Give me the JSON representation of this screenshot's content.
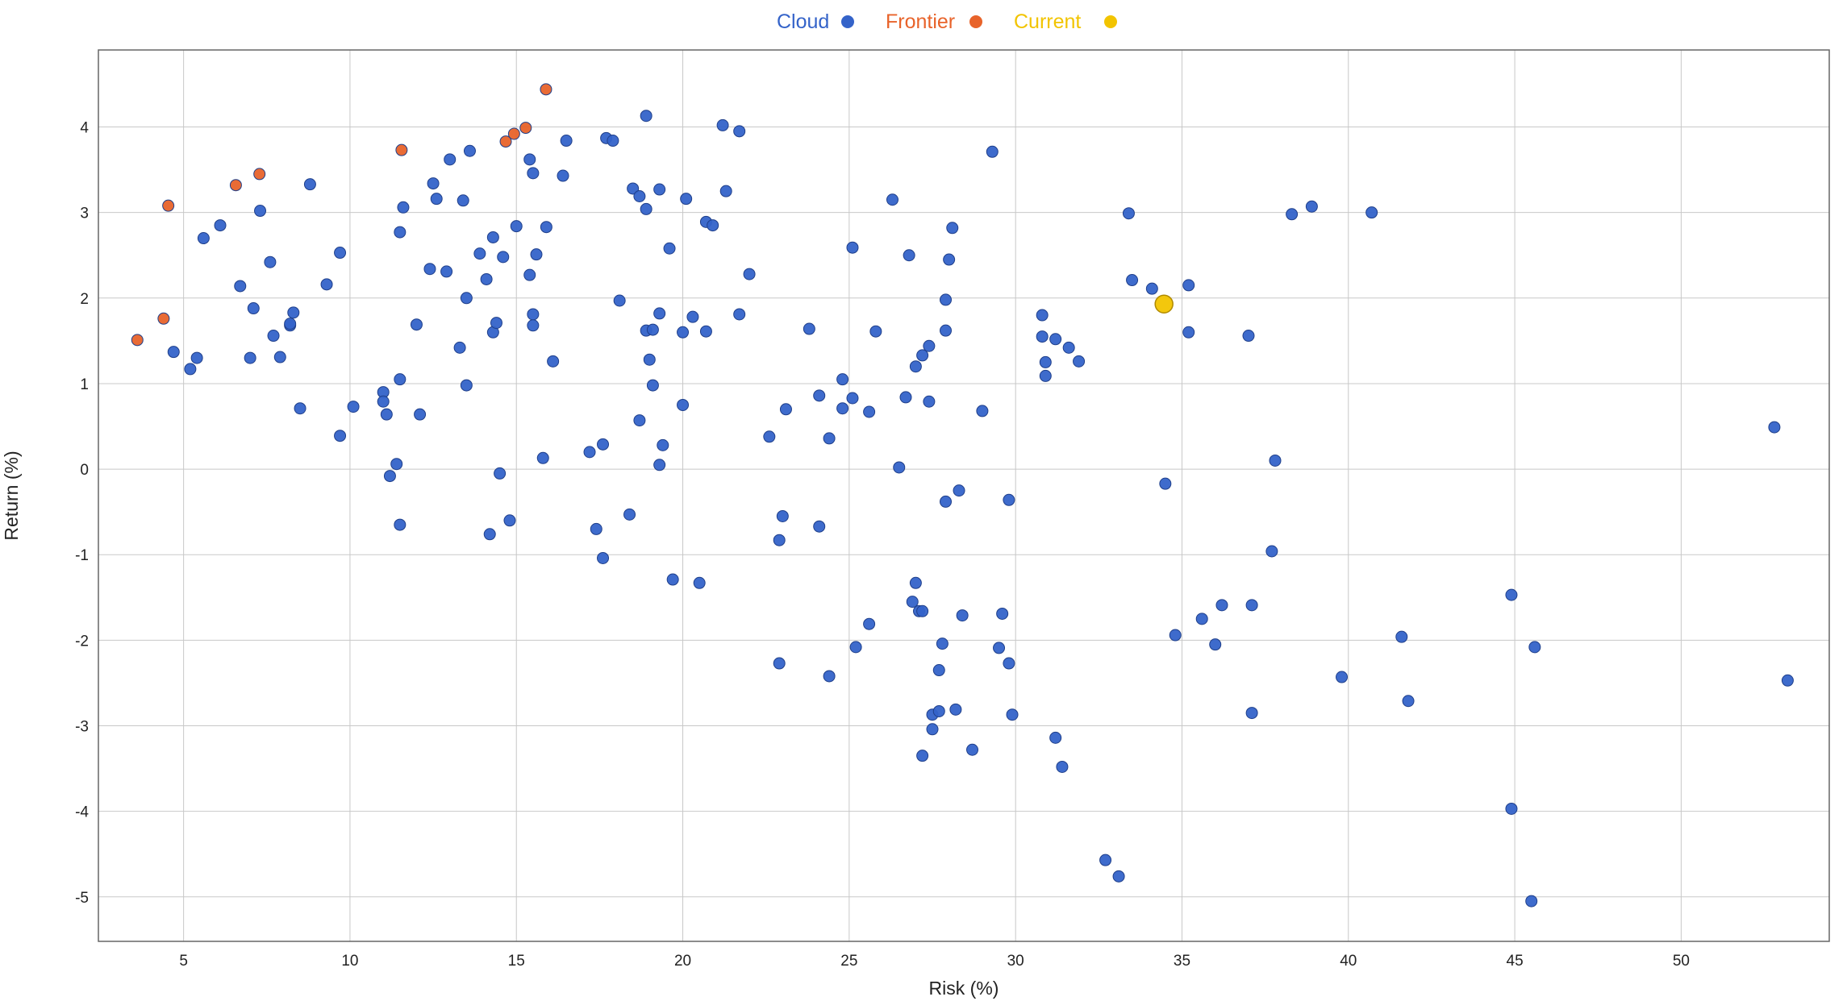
{
  "chart_data": {
    "type": "scatter",
    "title": "",
    "xlabel": "Risk (%)",
    "ylabel": "Return (%)",
    "xlim": [
      2.44,
      54.45
    ],
    "ylim": [
      -5.52,
      4.9
    ],
    "xticks": [
      5,
      10,
      15,
      20,
      25,
      30,
      35,
      40,
      45,
      50
    ],
    "yticks": [
      4,
      3,
      2,
      1,
      0,
      -1,
      -2,
      -3,
      -4,
      -5
    ],
    "grid": true,
    "legend_position": "top-center",
    "series": [
      {
        "name": "Cloud",
        "color": "#3463c9",
        "points": [
          [
            4.7,
            1.37
          ],
          [
            5.2,
            1.17
          ],
          [
            5.4,
            1.3
          ],
          [
            5.6,
            2.7
          ],
          [
            6.1,
            2.85
          ],
          [
            6.7,
            2.14
          ],
          [
            7.0,
            1.3
          ],
          [
            7.1,
            1.88
          ],
          [
            7.3,
            3.02
          ],
          [
            7.6,
            2.42
          ],
          [
            7.7,
            1.56
          ],
          [
            7.9,
            1.31
          ],
          [
            8.2,
            1.68
          ],
          [
            8.2,
            1.7
          ],
          [
            8.3,
            1.83
          ],
          [
            8.5,
            0.71
          ],
          [
            8.8,
            3.33
          ],
          [
            9.3,
            2.16
          ],
          [
            9.7,
            0.39
          ],
          [
            9.7,
            2.53
          ],
          [
            10.1,
            0.73
          ],
          [
            11.0,
            0.9
          ],
          [
            11.0,
            0.79
          ],
          [
            11.1,
            0.64
          ],
          [
            11.2,
            -0.08
          ],
          [
            11.4,
            0.06
          ],
          [
            11.5,
            1.05
          ],
          [
            11.5,
            2.77
          ],
          [
            11.5,
            -0.65
          ],
          [
            11.6,
            3.06
          ],
          [
            12.0,
            1.69
          ],
          [
            12.1,
            0.64
          ],
          [
            12.4,
            2.34
          ],
          [
            12.5,
            3.34
          ],
          [
            12.6,
            3.16
          ],
          [
            12.9,
            2.31
          ],
          [
            13.0,
            3.62
          ],
          [
            13.3,
            1.42
          ],
          [
            13.4,
            3.14
          ],
          [
            13.5,
            0.98
          ],
          [
            13.5,
            2.0
          ],
          [
            13.6,
            3.72
          ],
          [
            13.9,
            2.52
          ],
          [
            14.1,
            2.22
          ],
          [
            14.2,
            -0.76
          ],
          [
            14.3,
            2.71
          ],
          [
            14.3,
            1.6
          ],
          [
            14.4,
            1.71
          ],
          [
            14.5,
            -0.05
          ],
          [
            14.6,
            2.48
          ],
          [
            14.8,
            -0.6
          ],
          [
            15.0,
            2.84
          ],
          [
            15.4,
            2.27
          ],
          [
            15.4,
            3.62
          ],
          [
            15.5,
            3.46
          ],
          [
            15.5,
            1.81
          ],
          [
            15.5,
            1.68
          ],
          [
            15.6,
            2.51
          ],
          [
            15.8,
            0.13
          ],
          [
            15.9,
            2.83
          ],
          [
            16.1,
            1.26
          ],
          [
            16.4,
            3.43
          ],
          [
            16.5,
            3.84
          ],
          [
            17.2,
            0.2
          ],
          [
            17.4,
            -0.7
          ],
          [
            17.6,
            0.29
          ],
          [
            17.6,
            -1.04
          ],
          [
            17.7,
            3.87
          ],
          [
            17.9,
            3.84
          ],
          [
            18.1,
            1.97
          ],
          [
            18.4,
            -0.53
          ],
          [
            18.5,
            3.28
          ],
          [
            18.7,
            0.57
          ],
          [
            18.7,
            3.19
          ],
          [
            18.9,
            4.13
          ],
          [
            18.9,
            3.04
          ],
          [
            18.9,
            1.62
          ],
          [
            19.1,
            1.63
          ],
          [
            19.0,
            1.28
          ],
          [
            19.1,
            0.98
          ],
          [
            19.3,
            3.27
          ],
          [
            19.3,
            1.82
          ],
          [
            19.3,
            0.05
          ],
          [
            19.4,
            0.28
          ],
          [
            19.6,
            2.58
          ],
          [
            19.7,
            -1.29
          ],
          [
            20.0,
            1.6
          ],
          [
            20.0,
            0.75
          ],
          [
            20.1,
            3.16
          ],
          [
            20.3,
            1.78
          ],
          [
            20.5,
            -1.33
          ],
          [
            20.7,
            2.89
          ],
          [
            20.7,
            1.61
          ],
          [
            20.9,
            2.85
          ],
          [
            21.2,
            4.02
          ],
          [
            21.3,
            3.25
          ],
          [
            21.7,
            3.95
          ],
          [
            21.7,
            1.81
          ],
          [
            22.0,
            2.28
          ],
          [
            22.6,
            0.38
          ],
          [
            22.9,
            -2.27
          ],
          [
            22.9,
            -0.83
          ],
          [
            23.0,
            -0.55
          ],
          [
            23.1,
            0.7
          ],
          [
            23.8,
            1.64
          ],
          [
            24.1,
            0.86
          ],
          [
            24.1,
            -0.67
          ],
          [
            24.4,
            0.36
          ],
          [
            24.4,
            -2.42
          ],
          [
            24.8,
            1.05
          ],
          [
            24.8,
            0.71
          ],
          [
            25.1,
            2.59
          ],
          [
            25.1,
            0.83
          ],
          [
            25.2,
            -2.08
          ],
          [
            25.6,
            -1.81
          ],
          [
            25.6,
            0.67
          ],
          [
            25.8,
            1.61
          ],
          [
            26.3,
            3.15
          ],
          [
            26.5,
            0.02
          ],
          [
            26.7,
            0.84
          ],
          [
            26.8,
            2.5
          ],
          [
            26.9,
            -1.55
          ],
          [
            27.0,
            1.2
          ],
          [
            27.0,
            -1.33
          ],
          [
            27.1,
            -1.66
          ],
          [
            27.2,
            -1.66
          ],
          [
            27.2,
            -3.35
          ],
          [
            27.2,
            1.33
          ],
          [
            27.4,
            1.44
          ],
          [
            27.4,
            0.79
          ],
          [
            27.5,
            -2.87
          ],
          [
            27.5,
            -3.04
          ],
          [
            27.7,
            -2.83
          ],
          [
            27.7,
            -2.35
          ],
          [
            27.8,
            -2.04
          ],
          [
            27.9,
            1.98
          ],
          [
            27.9,
            1.62
          ],
          [
            27.9,
            -0.38
          ],
          [
            28.0,
            2.45
          ],
          [
            28.1,
            2.82
          ],
          [
            28.2,
            -2.81
          ],
          [
            28.3,
            -0.25
          ],
          [
            28.4,
            -1.71
          ],
          [
            28.7,
            -3.28
          ],
          [
            29.0,
            0.68
          ],
          [
            29.3,
            3.71
          ],
          [
            29.5,
            -2.09
          ],
          [
            29.6,
            -1.69
          ],
          [
            29.8,
            -0.36
          ],
          [
            29.8,
            -2.27
          ],
          [
            29.9,
            -2.87
          ],
          [
            30.8,
            1.55
          ],
          [
            30.8,
            1.8
          ],
          [
            30.9,
            1.25
          ],
          [
            30.9,
            1.09
          ],
          [
            31.2,
            1.52
          ],
          [
            31.2,
            -3.14
          ],
          [
            31.4,
            -3.48
          ],
          [
            31.6,
            1.42
          ],
          [
            31.9,
            1.26
          ],
          [
            32.7,
            -4.57
          ],
          [
            33.1,
            -4.76
          ],
          [
            33.4,
            2.99
          ],
          [
            33.5,
            2.21
          ],
          [
            34.1,
            2.11
          ],
          [
            34.5,
            -0.17
          ],
          [
            34.8,
            -1.94
          ],
          [
            35.2,
            2.15
          ],
          [
            35.2,
            1.6
          ],
          [
            35.6,
            -1.75
          ],
          [
            36.0,
            -2.05
          ],
          [
            36.2,
            -1.59
          ],
          [
            37.0,
            1.56
          ],
          [
            37.1,
            -1.59
          ],
          [
            37.1,
            -2.85
          ],
          [
            37.8,
            0.1
          ],
          [
            37.7,
            -0.96
          ],
          [
            38.3,
            2.98
          ],
          [
            38.9,
            3.07
          ],
          [
            39.8,
            -2.43
          ],
          [
            40.7,
            3.0
          ],
          [
            41.6,
            -1.96
          ],
          [
            41.8,
            -2.71
          ],
          [
            44.9,
            -1.47
          ],
          [
            44.9,
            -3.97
          ],
          [
            45.5,
            -5.05
          ],
          [
            45.6,
            -2.08
          ],
          [
            52.8,
            0.49
          ],
          [
            53.2,
            -2.47
          ]
        ]
      },
      {
        "name": "Frontier",
        "color": "#e8632a",
        "points": [
          [
            3.61,
            1.51
          ],
          [
            4.4,
            1.76
          ],
          [
            4.54,
            3.08
          ],
          [
            6.57,
            3.32
          ],
          [
            7.28,
            3.45
          ],
          [
            11.55,
            3.73
          ],
          [
            14.68,
            3.83
          ],
          [
            14.93,
            3.92
          ],
          [
            15.28,
            3.99
          ],
          [
            15.89,
            4.44
          ]
        ]
      },
      {
        "name": "Current",
        "color": "#f2c400",
        "points": [
          [
            34.46,
            1.93
          ]
        ]
      }
    ]
  }
}
